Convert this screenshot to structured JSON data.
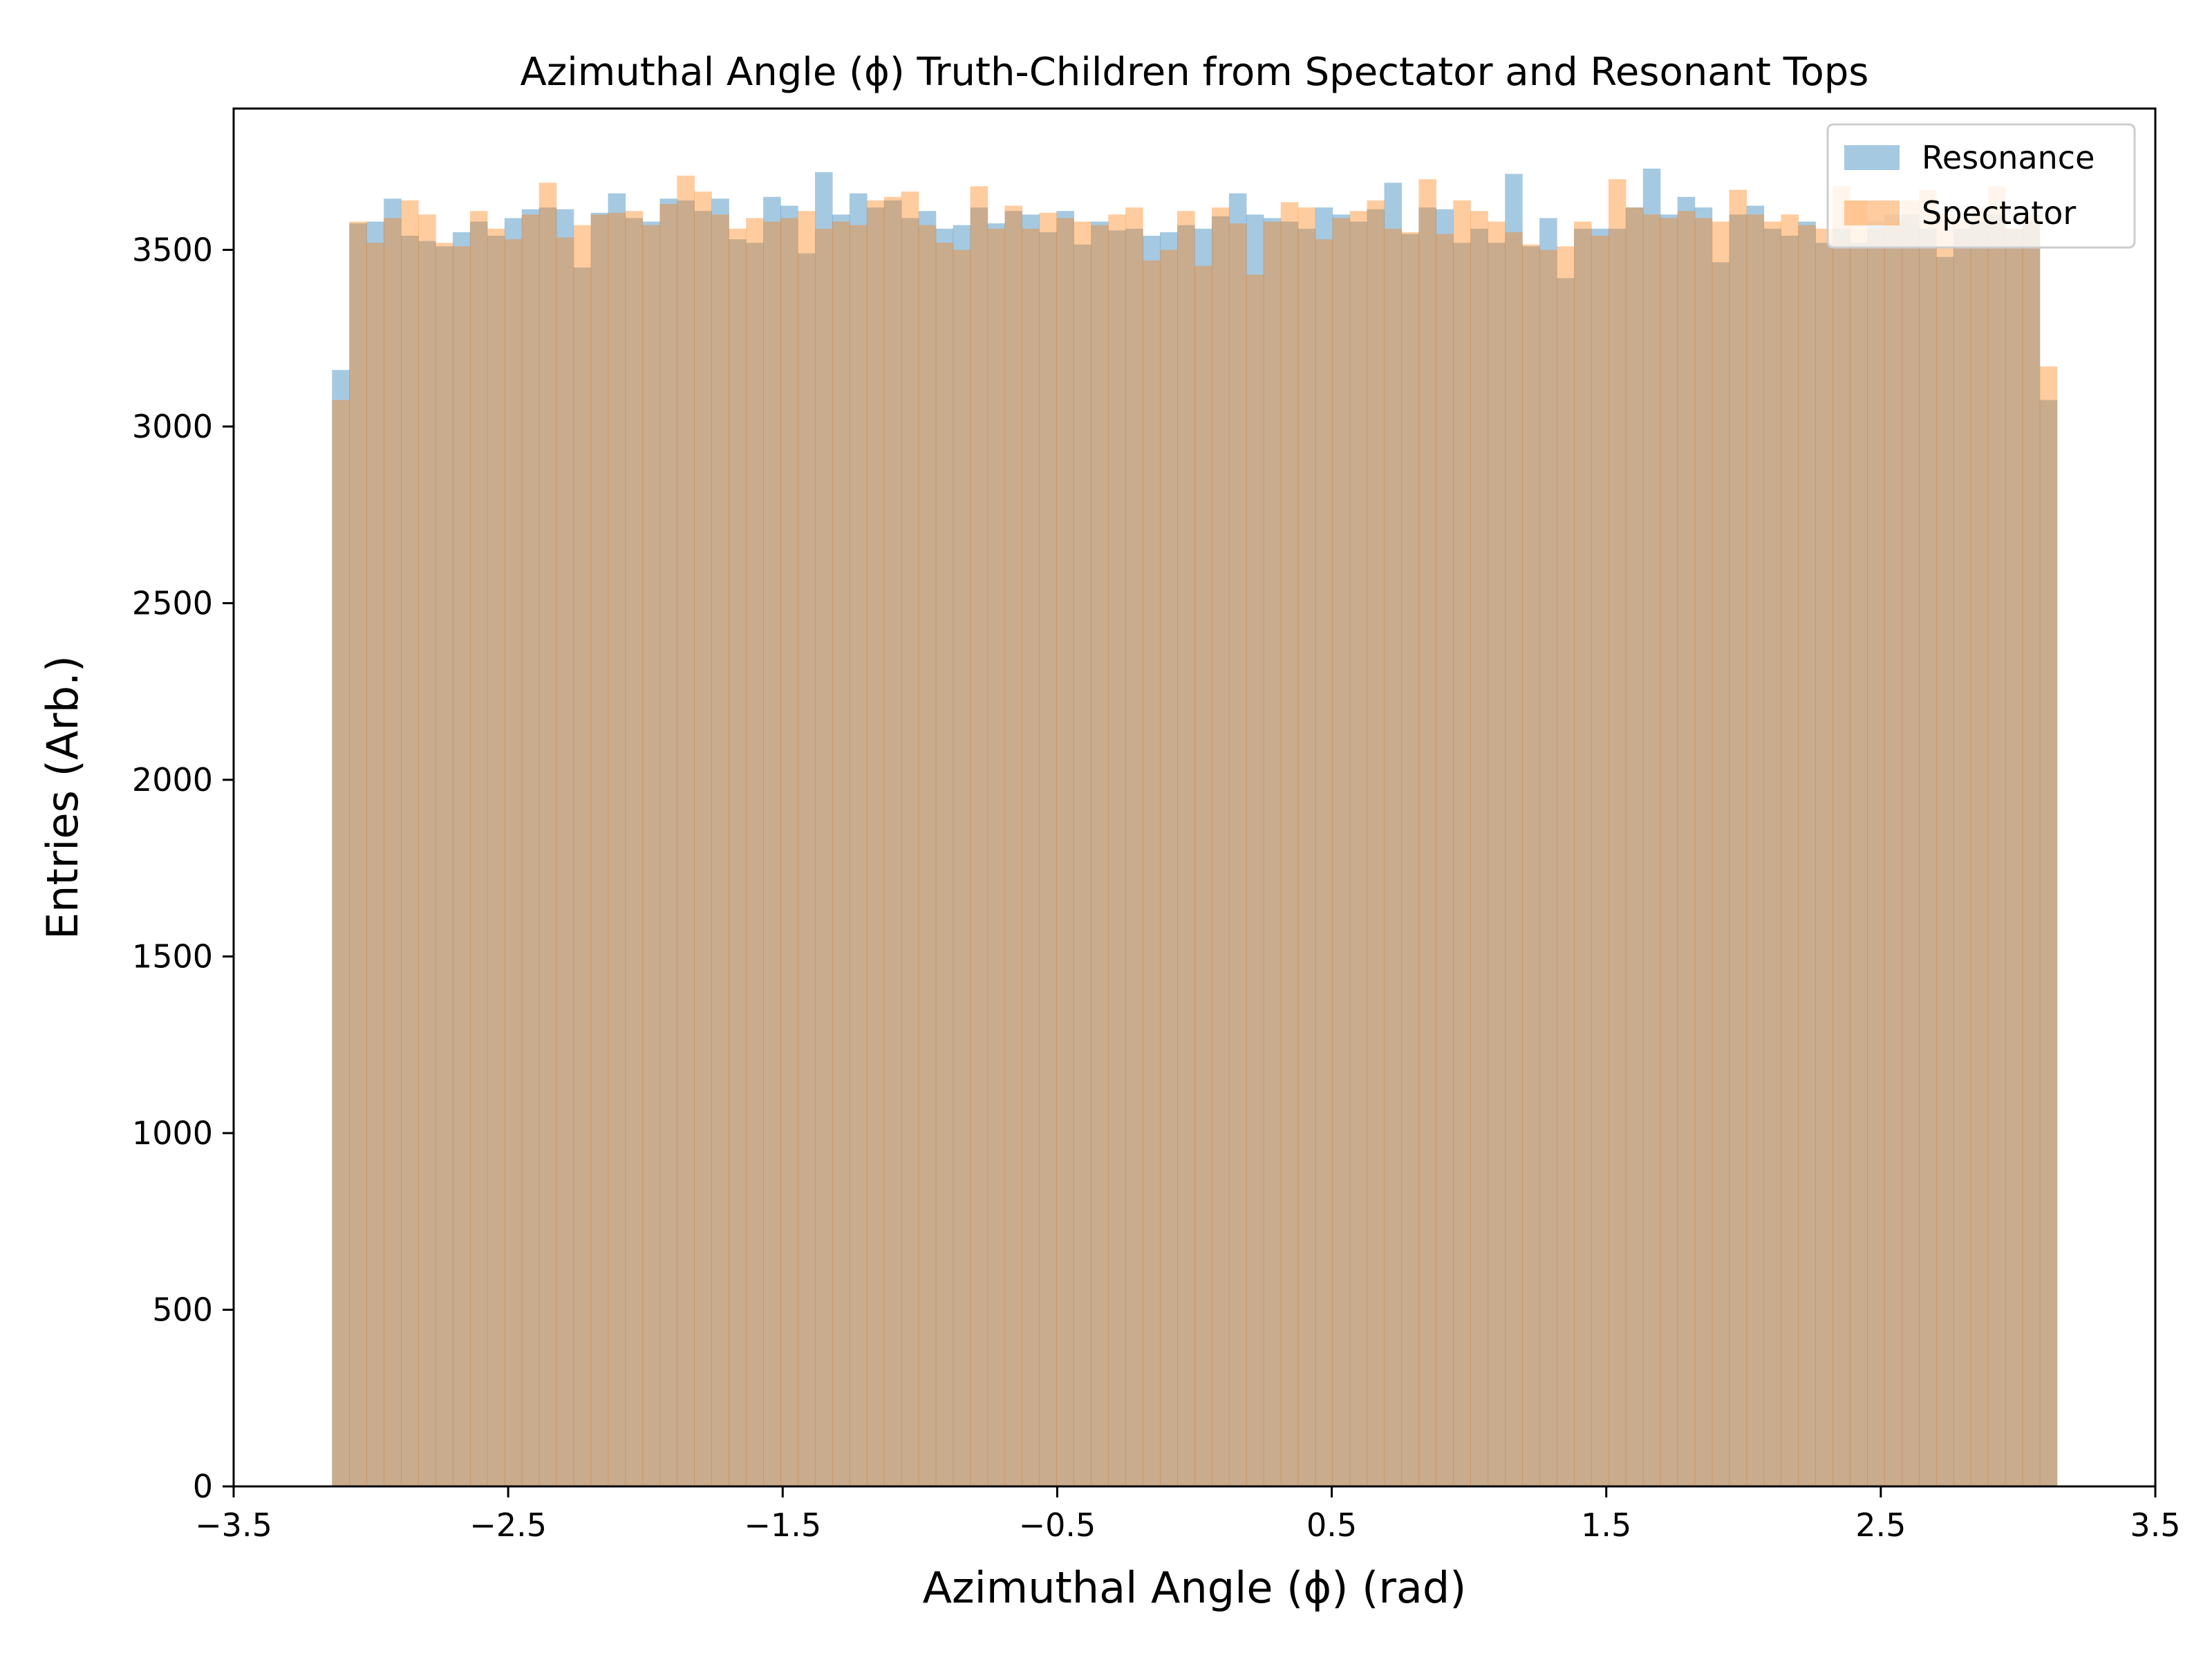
{
  "chart_data": {
    "type": "histogram",
    "title": "Azimuthal Angle (ϕ) Truth-Children from Spectator and Resonant Tops",
    "xlabel": "Azimuthal Angle (ϕ) (rad)",
    "ylabel": "Entries (Arb.)",
    "xlim": [
      -3.5,
      3.5
    ],
    "ylim": [
      0,
      3900
    ],
    "xticks": [
      -3.5,
      -2.5,
      -1.5,
      -0.5,
      0.5,
      1.5,
      2.5,
      3.5
    ],
    "xtick_labels": [
      "−3.5",
      "−2.5",
      "−1.5",
      "−0.5",
      "0.5",
      "1.5",
      "2.5",
      "3.5"
    ],
    "yticks": [
      0,
      500,
      1000,
      1500,
      2000,
      2500,
      3000,
      3500
    ],
    "ytick_labels": [
      "0",
      "500",
      "1000",
      "1500",
      "2000",
      "2500",
      "3000",
      "3500"
    ],
    "bin_range": [
      -3.1416,
      3.1416
    ],
    "n_bins": 100,
    "legend": {
      "position": "top-right"
    },
    "series": [
      {
        "name": "Resonance",
        "color": "#1f77b4",
        "alpha": 0.4,
        "values": [
          3160,
          3575,
          3580,
          3645,
          3540,
          3525,
          3510,
          3550,
          3580,
          3540,
          3590,
          3615,
          3620,
          3615,
          3450,
          3605,
          3660,
          3590,
          3580,
          3645,
          3640,
          3610,
          3645,
          3530,
          3520,
          3650,
          3625,
          3490,
          3720,
          3600,
          3660,
          3620,
          3640,
          3590,
          3610,
          3560,
          3570,
          3620,
          3575,
          3610,
          3600,
          3550,
          3610,
          3515,
          3580,
          3555,
          3560,
          3540,
          3550,
          3570,
          3560,
          3595,
          3660,
          3600,
          3590,
          3580,
          3560,
          3620,
          3600,
          3580,
          3615,
          3690,
          3545,
          3620,
          3615,
          3520,
          3560,
          3520,
          3715,
          3510,
          3590,
          3420,
          3560,
          3560,
          3560,
          3620,
          3730,
          3600,
          3650,
          3620,
          3465,
          3600,
          3625,
          3560,
          3540,
          3580,
          3520,
          3560,
          3520,
          3580,
          3600,
          3600,
          3560,
          3480,
          3560,
          3580,
          3600,
          3560,
          3580,
          3075
        ]
      },
      {
        "name": "Spectator",
        "color": "#ff7f0e",
        "alpha": 0.4,
        "values": [
          3075,
          3580,
          3520,
          3590,
          3640,
          3600,
          3520,
          3510,
          3610,
          3560,
          3530,
          3600,
          3690,
          3535,
          3570,
          3600,
          3605,
          3610,
          3570,
          3630,
          3710,
          3665,
          3600,
          3560,
          3590,
          3580,
          3590,
          3610,
          3560,
          3580,
          3570,
          3640,
          3650,
          3665,
          3570,
          3520,
          3500,
          3680,
          3560,
          3625,
          3560,
          3605,
          3590,
          3580,
          3570,
          3600,
          3620,
          3470,
          3500,
          3610,
          3455,
          3620,
          3575,
          3430,
          3580,
          3635,
          3620,
          3530,
          3590,
          3610,
          3640,
          3560,
          3550,
          3700,
          3545,
          3640,
          3610,
          3580,
          3550,
          3515,
          3500,
          3510,
          3580,
          3540,
          3700,
          3620,
          3600,
          3590,
          3610,
          3590,
          3580,
          3670,
          3600,
          3580,
          3600,
          3570,
          3560,
          3680,
          3640,
          3560,
          3580,
          3640,
          3670,
          3600,
          3590,
          3620,
          3680,
          3560,
          3600,
          3170
        ]
      }
    ]
  }
}
